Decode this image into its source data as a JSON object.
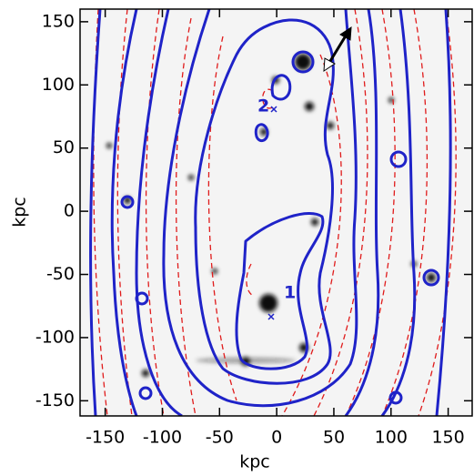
{
  "chart_data": {
    "type": "image",
    "xlabel": "kpc",
    "ylabel": "kpc",
    "xlim": [
      -172,
      171
    ],
    "ylim": [
      -162,
      160
    ],
    "xticks": [
      -150,
      -100,
      -50,
      0,
      50,
      100,
      150
    ],
    "yticks": [
      -150,
      -100,
      -50,
      0,
      50,
      100,
      150
    ],
    "annotations": [
      "1",
      "2"
    ]
  }
}
